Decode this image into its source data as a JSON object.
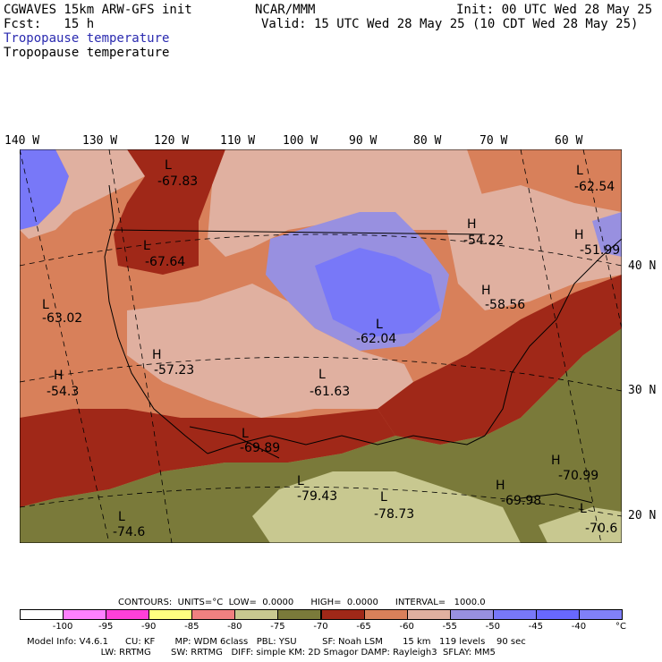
{
  "header": {
    "left1": "CGWAVES 15km ARW-GFS init",
    "left2": "Fcst:   15 h",
    "field1": "Tropopause temperature",
    "field2": "Tropopause temperature",
    "center": "NCAR/MMM",
    "init": "Init: 00 UTC Wed 28 May 25",
    "valid": "Valid: 15 UTC Wed 28 May 25 (10 CDT Wed 28 May 25)"
  },
  "axes": {
    "lon": [
      "140 W",
      "130 W",
      "120 W",
      "110 W",
      "100 W",
      "90 W",
      "80 W",
      "70 W",
      "60 W"
    ],
    "lat": [
      "40 N",
      "30 N",
      "20 N"
    ]
  },
  "map_labels": [
    {
      "type": "L",
      "value": "-67.83"
    },
    {
      "type": "L",
      "value": "-67.64"
    },
    {
      "type": "L",
      "value": "-63.02"
    },
    {
      "type": "H",
      "value": "-57.23"
    },
    {
      "type": "H",
      "value": "-54.3"
    },
    {
      "type": "L",
      "value": "-62.04"
    },
    {
      "type": "L",
      "value": "-61.63"
    },
    {
      "type": "L",
      "value": "-69.89"
    },
    {
      "type": "L",
      "value": "-79.43"
    },
    {
      "type": "L",
      "value": "-78.73"
    },
    {
      "type": "L",
      "value": "-74.6"
    },
    {
      "type": "H",
      "value": "-69.98"
    },
    {
      "type": "H",
      "value": "-70.99"
    },
    {
      "type": "L",
      "value": "-70.6"
    },
    {
      "type": "H",
      "value": "-54.22"
    },
    {
      "type": "H",
      "value": "-51.99"
    },
    {
      "type": "L",
      "value": "-62.54"
    },
    {
      "type": "H",
      "value": "-58.56"
    }
  ],
  "contours": {
    "title": "CONTOURS:  UNITS=°C  LOW=  0.0000      HIGH=  0.0000      INTERVAL=   1000.0"
  },
  "colorbar": {
    "colors": [
      "#ffffff",
      "#ff80ff",
      "#ff40d8",
      "#ffff80",
      "#f08080",
      "#c8c890",
      "#7a7a3a",
      "#a02818",
      "#d8805a",
      "#e0b0a0",
      "#9890e0",
      "#7878f8",
      "#6868ff",
      "#8080f8"
    ],
    "labels": [
      "-100",
      "-95",
      "-90",
      "-85",
      "-80",
      "-75",
      "-70",
      "-65",
      "-60",
      "-55",
      "-50",
      "-45",
      "-40"
    ],
    "unit": "°C"
  },
  "model_info": {
    "line1": "Model Info: V4.6.1      CU: KF       MP: WDM 6class   PBL: YSU         SF: Noah LSM       15 km   119 levels    90 sec",
    "line2": "                          LW: RRTMG       SW: RRTMG   DIFF: simple KM: 2D Smagor DAMP: Rayleigh3  SFLAY: MM5"
  }
}
